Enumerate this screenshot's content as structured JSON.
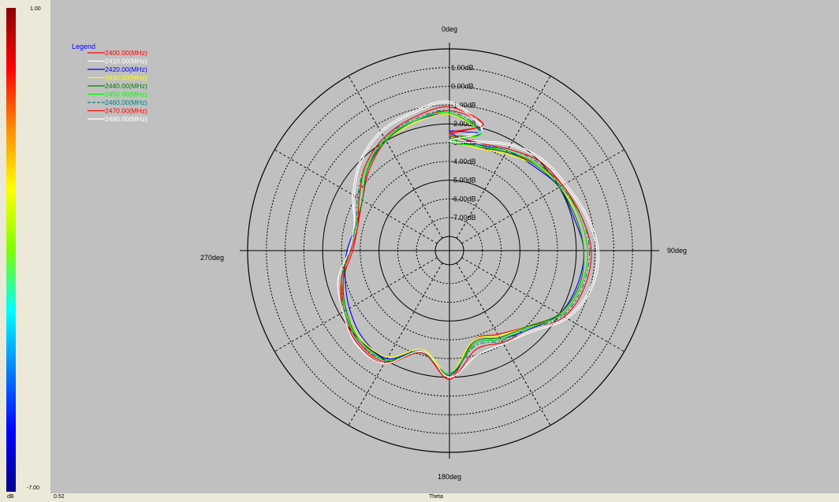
{
  "colorbar": {
    "max_label": "1.00",
    "min_label": "-7.00",
    "unit_label": "dB",
    "colors": [
      "#8b0000",
      "#ff0000",
      "#ff8c00",
      "#ffff00",
      "#7fff00",
      "#00ffff",
      "#0080ff",
      "#0000ff",
      "#00008b"
    ]
  },
  "bottom": {
    "value_label": "0.52",
    "axis_label": "Theta"
  },
  "chart_data": {
    "type": "polar-line",
    "angle_labels": [
      {
        "deg": 0,
        "label": "0deg"
      },
      {
        "deg": 90,
        "label": "90deg"
      },
      {
        "deg": 180,
        "label": "180deg"
      },
      {
        "deg": 270,
        "label": "270deg"
      }
    ],
    "radial_range": [
      -8,
      2
    ],
    "ring_values": [
      -7,
      -6,
      -5,
      -4,
      -3,
      -2,
      -1,
      0,
      1
    ],
    "radial_tick_labels": [
      "1.00dB",
      "0.00dB",
      "-1.00dB",
      "-2.00dB",
      "-3.00dB",
      "-4.00dB",
      "-5.00dB",
      "-6.00dB",
      "-7.00dB"
    ],
    "legend_title": "Legend",
    "legend_title_color": "#0000ff",
    "theta_step_deg": 15,
    "series": [
      {
        "name": "2400.00(MHz)",
        "color": "#ff0000",
        "dash": "",
        "r": [
          -2.6,
          -3.0,
          -2.7,
          -2.2,
          -1.8,
          -1.6,
          -1.4,
          -1.5,
          -1.9,
          -3.0,
          -3.6,
          -3.8,
          -1.9,
          -3.2,
          -1.9,
          -1.9,
          -2.3,
          -2.9,
          -3.6,
          -3.7,
          -3.4,
          -2.7,
          -2.0,
          -1.6,
          -1.3,
          -1.8
        ]
      },
      {
        "name": "2410.00(MHz)",
        "color": "#ffffff",
        "dash": "",
        "r": [
          -2.8,
          -2.7,
          -2.2,
          -1.8,
          -1.6,
          -1.2,
          -0.8,
          -0.9,
          -1.5,
          -2.6,
          -3.0,
          -3.0,
          -2.0,
          -3.2,
          -1.8,
          -1.7,
          -2.2,
          -2.6,
          -3.4,
          -3.5,
          -2.8,
          -2.0,
          -1.4,
          -1.1,
          -0.8,
          -2.0
        ]
      },
      {
        "name": "2420.00(MHz)",
        "color": "#0000ff",
        "dash": "",
        "r": [
          -2.4,
          -2.9,
          -2.6,
          -2.4,
          -2.0,
          -1.9,
          -1.6,
          -1.7,
          -2.0,
          -2.8,
          -3.3,
          -3.6,
          -2.1,
          -3.2,
          -2.1,
          -2.2,
          -2.6,
          -3.0,
          -3.3,
          -3.6,
          -3.4,
          -2.6,
          -1.9,
          -1.6,
          -1.5,
          -2.2
        ]
      },
      {
        "name": "2430.00(MHz)",
        "color": "#ffff00",
        "dash": "",
        "r": [
          -2.8,
          -3.1,
          -2.8,
          -2.3,
          -1.9,
          -1.8,
          -1.6,
          -1.6,
          -2.0,
          -3.0,
          -3.5,
          -3.8,
          -2.2,
          -3.3,
          -2.2,
          -2.1,
          -2.4,
          -2.9,
          -3.4,
          -3.6,
          -3.4,
          -2.6,
          -2.0,
          -1.7,
          -1.5,
          -2.3
        ]
      },
      {
        "name": "2440.00(MHz)",
        "color": "#008000",
        "dash": "",
        "r": [
          -2.7,
          -3.0,
          -2.7,
          -2.3,
          -2.0,
          -1.8,
          -1.6,
          -1.6,
          -2.0,
          -3.0,
          -3.4,
          -3.7,
          -2.1,
          -3.2,
          -2.0,
          -2.0,
          -2.4,
          -2.9,
          -3.4,
          -3.6,
          -3.4,
          -2.6,
          -2.0,
          -1.6,
          -1.4,
          -2.3
        ]
      },
      {
        "name": "2450.00(MHz)",
        "color": "#00ff00",
        "dash": "",
        "r": [
          -2.9,
          -3.0,
          -2.6,
          -2.2,
          -1.9,
          -1.6,
          -1.4,
          -1.5,
          -1.9,
          -2.9,
          -3.3,
          -3.6,
          -2.2,
          -3.1,
          -2.0,
          -2.0,
          -2.3,
          -2.8,
          -3.4,
          -3.6,
          -3.2,
          -2.5,
          -1.9,
          -1.6,
          -1.4,
          -2.3
        ]
      },
      {
        "name": "2460.00(MHz)",
        "color": "#008080",
        "dash": "6,3,2,3",
        "r": [
          -2.8,
          -2.9,
          -2.5,
          -2.1,
          -1.9,
          -1.5,
          -1.3,
          -1.4,
          -1.8,
          -2.8,
          -3.2,
          -3.5,
          -2.2,
          -3.1,
          -2.0,
          -1.9,
          -2.3,
          -2.8,
          -3.4,
          -3.6,
          -3.1,
          -2.4,
          -1.8,
          -1.5,
          -1.3,
          -2.2
        ]
      },
      {
        "name": "2470.00(MHz)",
        "color": "#ff0000",
        "dash": "",
        "r": [
          -2.5,
          -2.8,
          -2.5,
          -2.0,
          -1.8,
          -1.5,
          -1.2,
          -1.3,
          -1.7,
          -2.7,
          -3.1,
          -3.3,
          -1.9,
          -3.1,
          -1.8,
          -1.8,
          -2.2,
          -2.8,
          -3.5,
          -3.7,
          -3.2,
          -2.4,
          -1.8,
          -1.4,
          -1.1,
          -1.8
        ]
      },
      {
        "name": "2480.00(MHz)",
        "color": "#ffffff",
        "dash": "",
        "r": [
          -2.9,
          -2.8,
          -2.3,
          -1.9,
          -1.7,
          -1.3,
          -0.9,
          -1.0,
          -1.6,
          -2.7,
          -3.0,
          -3.0,
          -2.0,
          -3.2,
          -1.8,
          -1.7,
          -2.2,
          -2.6,
          -3.4,
          -3.5,
          -2.9,
          -2.1,
          -1.5,
          -1.2,
          -0.9,
          -2.1
        ]
      }
    ]
  }
}
